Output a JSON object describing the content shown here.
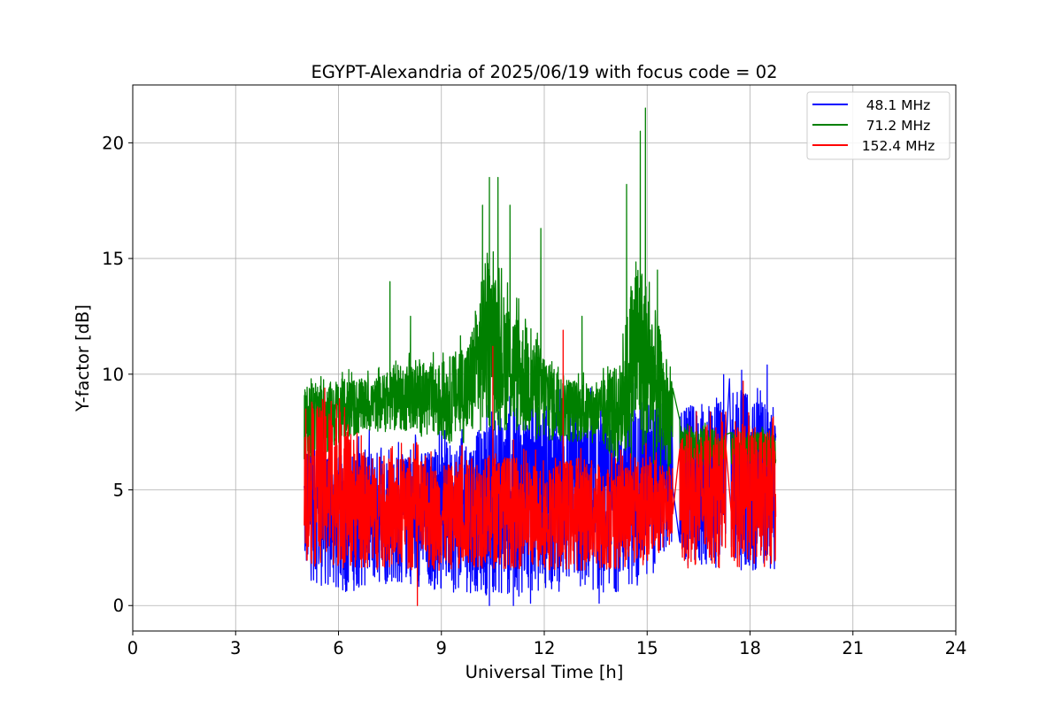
{
  "chart_data": {
    "type": "line",
    "title": "EGYPT-Alexandria of 2025/06/19 with focus code = 02",
    "xlabel": "Universal Time [h]",
    "ylabel": "Y-factor [dB]",
    "xlim": [
      0,
      24
    ],
    "ylim": [
      -1.1,
      22.5
    ],
    "xticks": [
      0,
      3,
      6,
      9,
      12,
      15,
      18,
      21,
      24
    ],
    "yticks": [
      0,
      5,
      10,
      15,
      20
    ],
    "grid": true,
    "legend_position": "top-right",
    "series": [
      {
        "name": "48.1 MHz",
        "color": "#0000ff",
        "segments": [
          [
            5.0,
            15.75
          ],
          [
            15.95,
            17.3
          ],
          [
            17.45,
            18.75
          ]
        ],
        "envelope": [
          {
            "x": 5.0,
            "lo": 1.2,
            "hi": 7.0
          },
          {
            "x": 6.0,
            "lo": 0.4,
            "hi": 6.5
          },
          {
            "x": 7.0,
            "lo": 0.8,
            "hi": 6.8
          },
          {
            "x": 8.0,
            "lo": 0.9,
            "hi": 6.5
          },
          {
            "x": 9.0,
            "lo": 0.6,
            "hi": 7.0
          },
          {
            "x": 10.0,
            "lo": 0.5,
            "hi": 7.5
          },
          {
            "x": 11.0,
            "lo": 0.3,
            "hi": 8.5
          },
          {
            "x": 12.0,
            "lo": 0.6,
            "hi": 9.0
          },
          {
            "x": 13.0,
            "lo": 0.5,
            "hi": 8.5
          },
          {
            "x": 14.0,
            "lo": 0.5,
            "hi": 8.0
          },
          {
            "x": 15.0,
            "lo": 1.0,
            "hi": 9.0
          },
          {
            "x": 15.75,
            "lo": 2.5,
            "hi": 8.0
          },
          {
            "x": 16.0,
            "lo": 1.5,
            "hi": 8.5
          },
          {
            "x": 17.3,
            "lo": 1.5,
            "hi": 9.0
          },
          {
            "x": 17.5,
            "lo": 1.5,
            "hi": 9.5
          },
          {
            "x": 18.75,
            "lo": 1.5,
            "hi": 8.5
          }
        ],
        "peaks": [
          [
            9.6,
            7.6
          ],
          [
            11.2,
            9.6
          ],
          [
            13.5,
            8.6
          ],
          [
            16.8,
            8.6
          ],
          [
            17.4,
            9.8
          ],
          [
            18.5,
            10.4
          ]
        ],
        "dips": [
          [
            10.4,
            0.0
          ],
          [
            11.1,
            0.0
          ],
          [
            11.6,
            0.1
          ],
          [
            13.6,
            0.1
          ]
        ]
      },
      {
        "name": "71.2 MHz",
        "color": "#008000",
        "segments": [
          [
            5.0,
            15.75
          ],
          [
            15.95,
            17.3
          ],
          [
            17.45,
            18.75
          ]
        ],
        "envelope": [
          {
            "x": 5.0,
            "lo": 5.5,
            "hi": 9.5
          },
          {
            "x": 6.0,
            "lo": 7.0,
            "hi": 9.8
          },
          {
            "x": 7.0,
            "lo": 7.5,
            "hi": 9.8
          },
          {
            "x": 8.0,
            "lo": 7.5,
            "hi": 10.5
          },
          {
            "x": 9.0,
            "lo": 7.0,
            "hi": 10.5
          },
          {
            "x": 9.8,
            "lo": 7.0,
            "hi": 11.5
          },
          {
            "x": 10.3,
            "lo": 7.5,
            "hi": 15.0
          },
          {
            "x": 11.0,
            "lo": 7.5,
            "hi": 13.0
          },
          {
            "x": 11.8,
            "lo": 7.0,
            "hi": 11.5
          },
          {
            "x": 12.5,
            "lo": 7.0,
            "hi": 10.0
          },
          {
            "x": 13.5,
            "lo": 7.0,
            "hi": 9.5
          },
          {
            "x": 14.2,
            "lo": 6.0,
            "hi": 10.5
          },
          {
            "x": 14.7,
            "lo": 6.5,
            "hi": 15.5
          },
          {
            "x": 15.2,
            "lo": 6.0,
            "hi": 13.0
          },
          {
            "x": 15.75,
            "lo": 5.5,
            "hi": 9.5
          },
          {
            "x": 16.0,
            "lo": 6.0,
            "hi": 7.8
          },
          {
            "x": 17.3,
            "lo": 6.0,
            "hi": 7.5
          },
          {
            "x": 17.5,
            "lo": 6.0,
            "hi": 7.5
          },
          {
            "x": 18.75,
            "lo": 6.0,
            "hi": 7.5
          }
        ],
        "peaks": [
          [
            6.3,
            10.2
          ],
          [
            7.5,
            14.0
          ],
          [
            8.1,
            12.5
          ],
          [
            10.2,
            17.3
          ],
          [
            10.4,
            18.5
          ],
          [
            10.65,
            18.5
          ],
          [
            11.0,
            17.3
          ],
          [
            11.9,
            16.3
          ],
          [
            13.1,
            12.5
          ],
          [
            14.4,
            18.2
          ],
          [
            14.8,
            20.5
          ],
          [
            14.95,
            21.5
          ],
          [
            15.3,
            14.5
          ]
        ]
      },
      {
        "name": "152.4 MHz",
        "color": "#ff0000",
        "segments": [
          [
            5.0,
            15.75
          ],
          [
            15.95,
            17.3
          ],
          [
            17.45,
            18.75
          ]
        ],
        "envelope": [
          {
            "x": 5.0,
            "lo": 1.6,
            "hi": 7.5
          },
          {
            "x": 5.5,
            "lo": 1.6,
            "hi": 9.0
          },
          {
            "x": 6.0,
            "lo": 1.6,
            "hi": 8.5
          },
          {
            "x": 7.0,
            "lo": 1.5,
            "hi": 6.0
          },
          {
            "x": 8.0,
            "lo": 1.5,
            "hi": 6.5
          },
          {
            "x": 9.0,
            "lo": 1.5,
            "hi": 6.0
          },
          {
            "x": 10.0,
            "lo": 1.6,
            "hi": 6.5
          },
          {
            "x": 11.0,
            "lo": 1.6,
            "hi": 6.5
          },
          {
            "x": 12.0,
            "lo": 1.5,
            "hi": 6.0
          },
          {
            "x": 13.0,
            "lo": 1.5,
            "hi": 6.5
          },
          {
            "x": 14.0,
            "lo": 1.5,
            "hi": 6.0
          },
          {
            "x": 15.0,
            "lo": 1.8,
            "hi": 6.5
          },
          {
            "x": 15.75,
            "lo": 2.5,
            "hi": 6.0
          },
          {
            "x": 16.0,
            "lo": 1.6,
            "hi": 7.5
          },
          {
            "x": 17.3,
            "lo": 1.6,
            "hi": 7.5
          },
          {
            "x": 17.5,
            "lo": 1.5,
            "hi": 8.0
          },
          {
            "x": 18.75,
            "lo": 1.6,
            "hi": 7.5
          }
        ],
        "peaks": [
          [
            5.6,
            9.4
          ],
          [
            10.5,
            11.2
          ],
          [
            12.55,
            11.9
          ],
          [
            17.8,
            9.7
          ]
        ],
        "dips": [
          [
            8.3,
            0.0
          ]
        ]
      }
    ]
  }
}
